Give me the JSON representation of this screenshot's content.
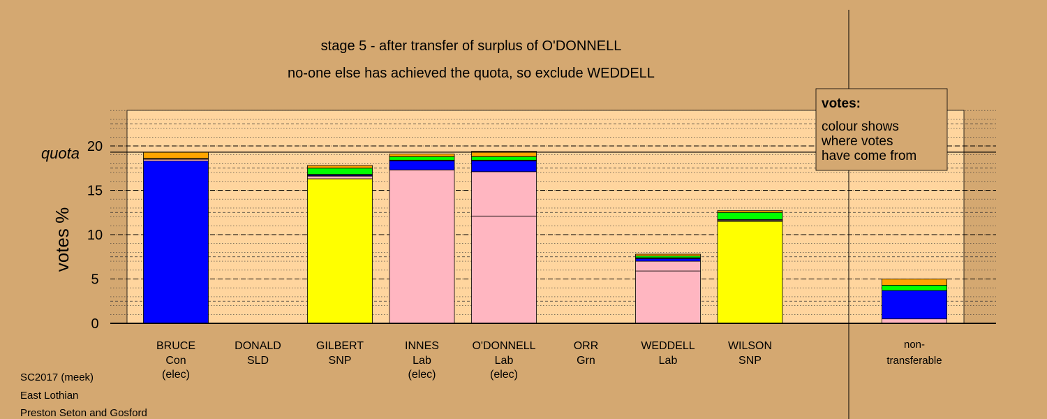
{
  "colors": {
    "page_bg": "#d4a871",
    "plot_bg": "#ffd59e",
    "Con": "#0000ff",
    "Lab": "#ffb6c1",
    "SNP": "#ffff00",
    "Grn": "#00ff00",
    "SLD": "#ffa500",
    "Other": "#4d4d4d"
  },
  "chart_data": {
    "type": "bar",
    "stacked": true,
    "title": "stage 5 - after transfer of surplus of O'DONNELL",
    "subtitle": "no-one else has achieved the quota, so exclude WEDDELL",
    "ylabel": "votes %",
    "ylim": [
      0,
      24
    ],
    "yticks": [
      0,
      5,
      10,
      15,
      20
    ],
    "quota": 19.3,
    "quota_label": "quota",
    "grid": true,
    "legend": {
      "position": "top-right",
      "title": "votes:",
      "lines": [
        "colour shows",
        "where votes",
        "have come from"
      ]
    },
    "candidates": [
      {
        "name": "BRUCE",
        "party": "Con",
        "note": "(elec)",
        "segments": [
          {
            "from": "Con",
            "value": 18.3
          },
          {
            "from": "Lab",
            "value": 0.2
          },
          {
            "from": "Other",
            "value": 0.1
          },
          {
            "from": "SLD",
            "value": 0.7
          }
        ]
      },
      {
        "name": "DONALD",
        "party": "SLD",
        "note": "",
        "segments": []
      },
      {
        "name": "GILBERT",
        "party": "SNP",
        "note": "",
        "segments": [
          {
            "from": "SNP",
            "value": 16.3
          },
          {
            "from": "Lab",
            "value": 0.3
          },
          {
            "from": "Con",
            "value": 0.1
          },
          {
            "from": "Other",
            "value": 0.1
          },
          {
            "from": "Grn",
            "value": 0.7
          },
          {
            "from": "SLD",
            "value": 0.3
          }
        ]
      },
      {
        "name": "INNES",
        "party": "Lab",
        "note": "(elec)",
        "segments": [
          {
            "from": "Lab",
            "value": 17.3
          },
          {
            "from": "Con",
            "value": 1.0
          },
          {
            "from": "Other",
            "value": 0.1
          },
          {
            "from": "Grn",
            "value": 0.4
          },
          {
            "from": "SLD",
            "value": 0.3
          }
        ]
      },
      {
        "name": "O'DONNELL",
        "party": "Lab",
        "note": "(elec)",
        "segments": [
          {
            "from": "Lab",
            "value": 12.1
          },
          {
            "from": "Lab",
            "value": 5.0
          },
          {
            "from": "Con",
            "value": 1.2
          },
          {
            "from": "Other",
            "value": 0.1
          },
          {
            "from": "Grn",
            "value": 0.4
          },
          {
            "from": "SLD",
            "value": 0.6
          }
        ]
      },
      {
        "name": "ORR",
        "party": "Grn",
        "note": "",
        "segments": []
      },
      {
        "name": "WEDDELL",
        "party": "Lab",
        "note": "",
        "segments": [
          {
            "from": "Lab",
            "value": 5.9
          },
          {
            "from": "Lab",
            "value": 1.1
          },
          {
            "from": "Con",
            "value": 0.3
          },
          {
            "from": "Other",
            "value": 0.1
          },
          {
            "from": "Grn",
            "value": 0.2
          },
          {
            "from": "SLD",
            "value": 0.2
          }
        ]
      },
      {
        "name": "WILSON",
        "party": "SNP",
        "note": "",
        "segments": [
          {
            "from": "SNP",
            "value": 11.5
          },
          {
            "from": "Other",
            "value": 0.1
          },
          {
            "from": "Lab",
            "value": 0.1
          },
          {
            "from": "Grn",
            "value": 0.8
          },
          {
            "from": "SLD",
            "value": 0.2
          }
        ]
      }
    ],
    "nontransferable": {
      "label_line1": "non-",
      "label_line2": "transferable",
      "segments": [
        {
          "from": "Lab",
          "value": 0.5
        },
        {
          "from": "Con",
          "value": 3.2
        },
        {
          "from": "Grn",
          "value": 0.6
        },
        {
          "from": "SLD",
          "value": 0.7
        }
      ]
    }
  },
  "footer": {
    "line1": "SC2017 (meek)",
    "line2": "East Lothian",
    "line3": "Preston Seton and Gosford"
  }
}
